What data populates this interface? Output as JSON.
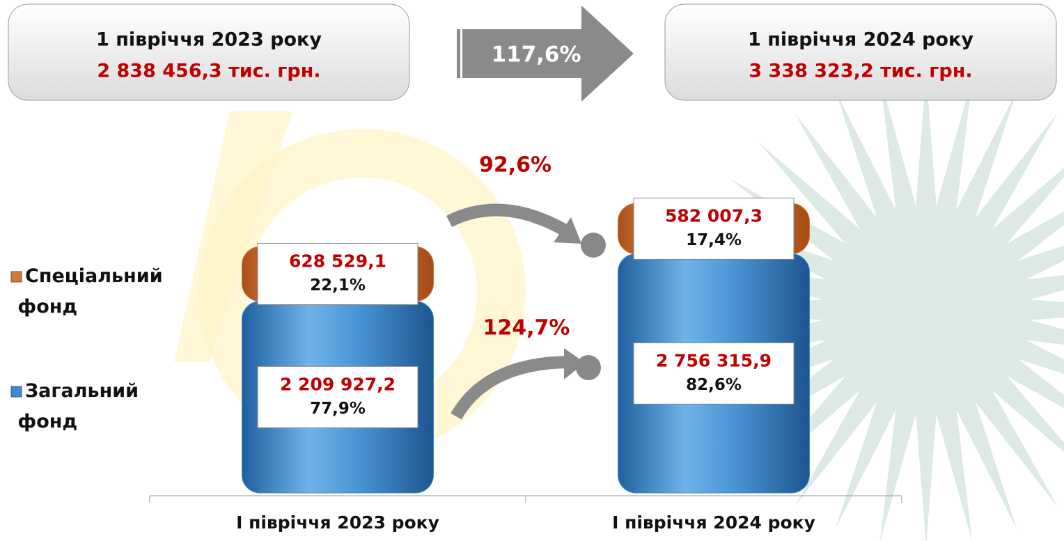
{
  "chart_data": {
    "type": "stacked-bar",
    "categories": [
      "І півріччя 2023 року",
      "І півріччя 2024 року"
    ],
    "series": [
      {
        "name": "Загальний фонд",
        "color": "#3d8ad0",
        "values": [
          2209927.2,
          2756315.9
        ],
        "value_labels": [
          "2 209 927,2",
          "2 756 315,9"
        ],
        "shares": [
          77.9,
          82.6
        ],
        "share_labels": [
          "77,9%",
          "82,6%"
        ]
      },
      {
        "name": "Спеціальний фонд",
        "color": "#d9772e",
        "values": [
          628529.1,
          582007.3
        ],
        "value_labels": [
          "628 529,1",
          "582 007,3"
        ],
        "shares": [
          22.1,
          17.4
        ],
        "share_labels": [
          "22,1%",
          "17,4%"
        ]
      }
    ],
    "ylim": [
      0,
      3500000
    ],
    "periods": [
      "1 півріччя 2023 року",
      "1 півріччя 2024 року"
    ],
    "totals": [
      2838456.3,
      3338323.2
    ],
    "total_labels": [
      "2 838 456,3 тис. грн.",
      "3 338 323,2 тис. грн."
    ],
    "total_growth": {
      "value": 117.6,
      "label": "117,6%"
    },
    "series_growth": [
      {
        "value": 124.7,
        "label": "124,7%"
      },
      {
        "value": 92.6,
        "label": "92,6%"
      }
    ]
  }
}
